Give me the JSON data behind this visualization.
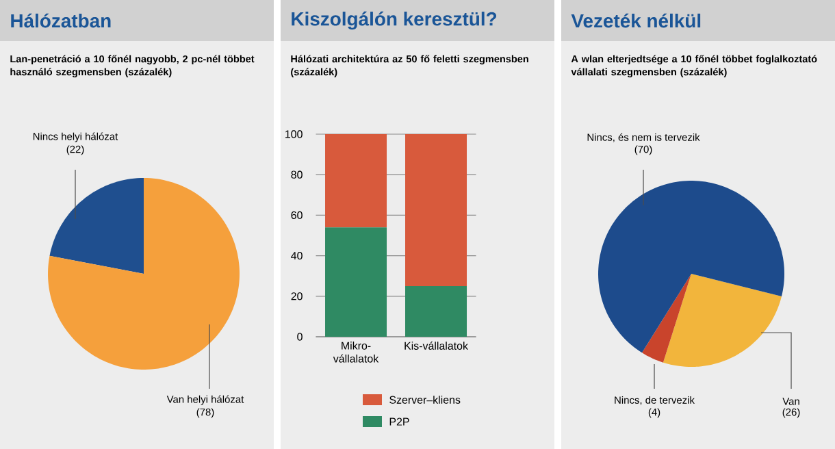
{
  "chart_data": [
    {
      "type": "pie",
      "title": "Hálózatban",
      "subtitle": "Lan-penetráció a 10 főnél nagyobb, 2 pc-nél többet használó szegmensben (százalék)",
      "categories": [
        "Nincs helyi hálózat",
        "Van helyi hálózat"
      ],
      "values": [
        22,
        78
      ],
      "value_labels": [
        "(22)",
        "(78)"
      ],
      "colors": [
        "#1f4f8f",
        "#f5a03c"
      ]
    },
    {
      "type": "bar",
      "title": "Kiszolgálón keresztül?",
      "subtitle": "Hálózati architektúra az 50 fő feletti szegmensben (százalék)",
      "categories": [
        "Mikro-vállalatok",
        "Kis-vállalatok"
      ],
      "stacked": true,
      "ylim": [
        0,
        100
      ],
      "yticks": [
        0,
        20,
        40,
        60,
        80,
        100
      ],
      "grid": "y",
      "legend": "bottom",
      "series": [
        {
          "name": "P2P",
          "color": "#2f8a63",
          "values": [
            54,
            25
          ]
        },
        {
          "name": "Szerver–kliens",
          "color": "#d85a3c",
          "values": [
            46,
            75
          ]
        }
      ]
    },
    {
      "type": "pie",
      "title": "Vezeték nélkül",
      "subtitle": "A wlan elterjedtsége a 10 főnél többet foglalkoztató vállalati szegmensben (százalék)",
      "categories": [
        "Van",
        "Nincs, de tervezik",
        "Nincs, és nem is tervezik"
      ],
      "values": [
        26,
        4,
        70
      ],
      "value_labels": [
        "(26)",
        "(4)",
        "(70)"
      ],
      "colors": [
        "#f2b53c",
        "#c9442c",
        "#1d4b8c"
      ]
    }
  ]
}
